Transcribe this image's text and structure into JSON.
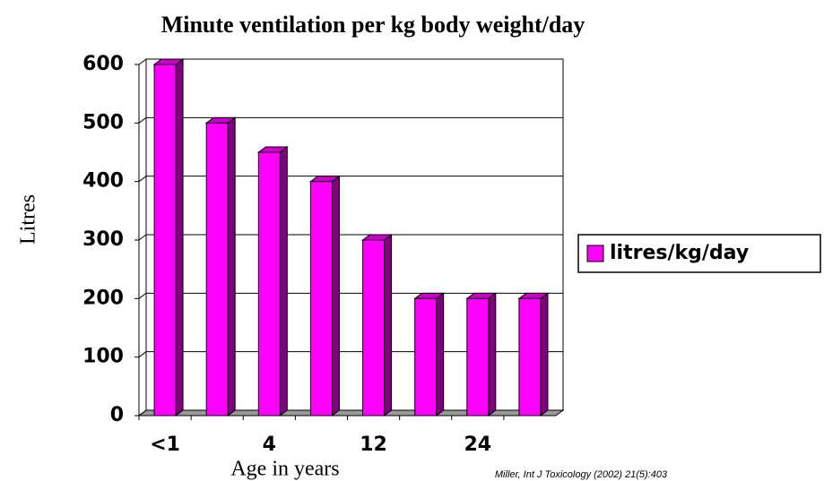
{
  "chart_data": {
    "type": "bar3d",
    "title": "Minute ventilation per kg body weight/day",
    "xlabel": "Age in years",
    "ylabel": "Litres",
    "source": "Miller,  Int J Toxicology (2002) 21(5):403",
    "categories": [
      "<1",
      null,
      "4",
      null,
      "12",
      null,
      "24",
      null
    ],
    "series": [
      {
        "name": "litres/kg/day",
        "color": "#ff00ff",
        "values": [
          600,
          500,
          450,
          400,
          300,
          200,
          200,
          200
        ]
      }
    ],
    "ylim": [
      0,
      600
    ],
    "yticks": [
      0,
      100,
      200,
      300,
      400,
      500,
      600
    ],
    "grid": true,
    "legend": "right"
  }
}
